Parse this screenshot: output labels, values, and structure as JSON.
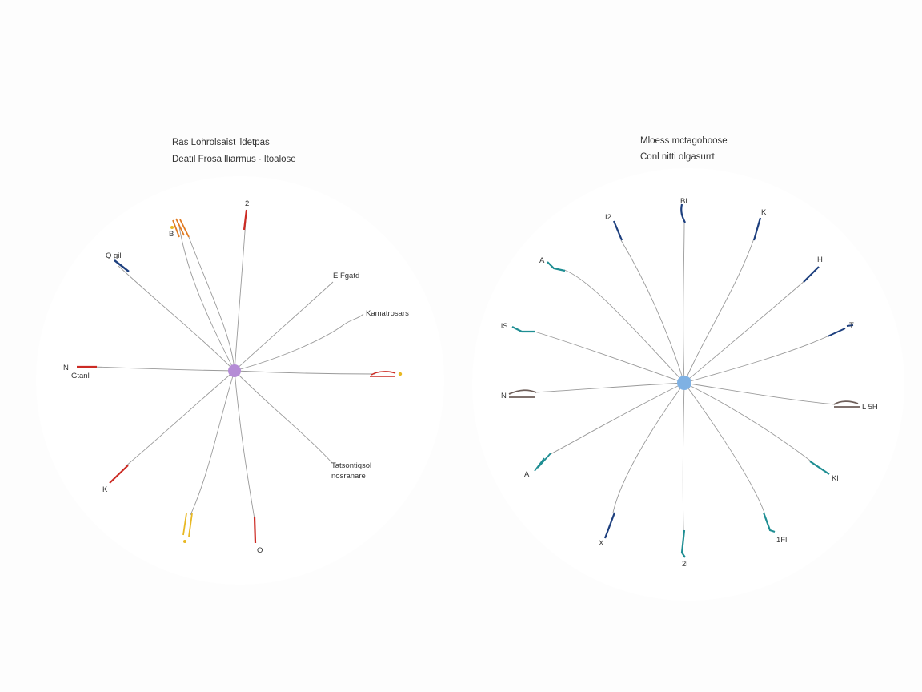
{
  "colors": {
    "background": "#fdfdfd",
    "spoke_line": "#9a9a9a",
    "left_hub": "#b58cd6",
    "right_hub": "#7fb1e3",
    "red": "#cc2b24",
    "orange": "#e07b22",
    "yellow": "#e8b823",
    "navy": "#1d3f7e",
    "teal": "#1f8e93",
    "gray": "#6e5f5a"
  },
  "left": {
    "title_line1": "Ras Lohrolsaist 'ldetpas",
    "title_line2": "Deatil Frosa lliarmus  ·  ltoalose",
    "hub_color": "left_hub",
    "spokes": [
      {
        "label": "2",
        "color": "red",
        "lines": 1
      },
      {
        "label": "E Fgatd",
        "color": "",
        "lines": 1
      },
      {
        "label": "Kamatrosars",
        "color": "",
        "lines": 1
      },
      {
        "label": "",
        "color": "orange",
        "lines": 2
      },
      {
        "label": "Tatsontiqsol",
        "label2": "nosranare",
        "color": "",
        "lines": 1
      },
      {
        "label": "O",
        "color": "red",
        "lines": 1
      },
      {
        "label": "",
        "color": "orange",
        "lines": 2
      },
      {
        "label": "K",
        "color": "red",
        "lines": 1
      },
      {
        "label": "N",
        "label2": "Gtanl",
        "color": "red",
        "lines": 1
      },
      {
        "label": "Q  gil",
        "color": "navy",
        "lines": 1
      },
      {
        "label": "B",
        "color": "orange",
        "lines": 2
      }
    ]
  },
  "right": {
    "title_line1": "Mloess mctagohoose",
    "title_line2": "Conl nitti olgasurrt",
    "hub_color": "right_hub",
    "spokes": [
      {
        "label": "Bl",
        "color": "navy"
      },
      {
        "label": "K",
        "color": "navy"
      },
      {
        "label": "H",
        "color": "navy"
      },
      {
        "label": "T",
        "color": "navy"
      },
      {
        "label": "L 5H",
        "color": "gray"
      },
      {
        "label": "Kl",
        "color": "teal"
      },
      {
        "label": "1Fl",
        "color": "teal"
      },
      {
        "label": "2l",
        "color": "teal"
      },
      {
        "label": "X",
        "color": "navy"
      },
      {
        "label": "A",
        "color": "teal"
      },
      {
        "label": "N",
        "color": "gray"
      },
      {
        "label": "lS",
        "color": "teal"
      },
      {
        "label": "A",
        "color": "teal"
      },
      {
        "label": "I2",
        "color": "navy"
      }
    ]
  }
}
